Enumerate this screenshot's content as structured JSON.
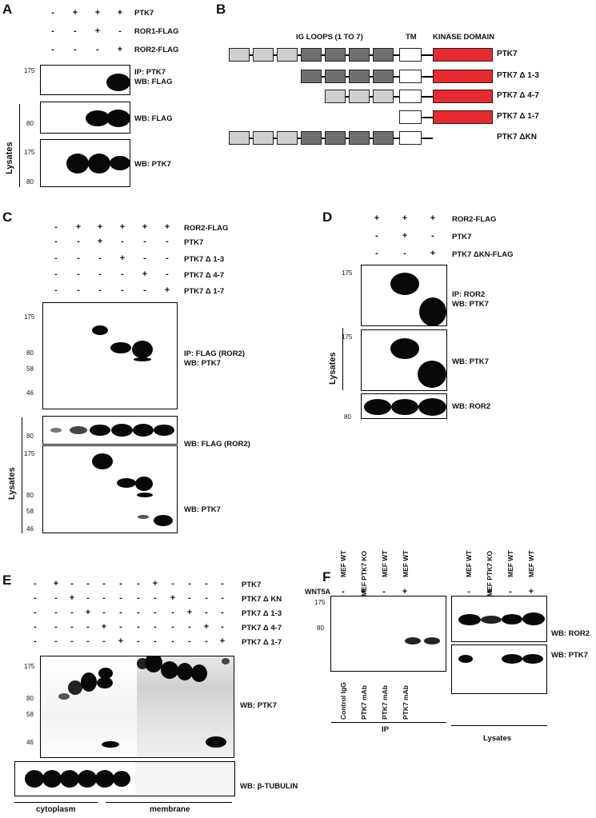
{
  "panels": {
    "A": {
      "letter": "A",
      "conditions": [
        {
          "label": "PTK7",
          "signs": [
            "-",
            "+",
            "+",
            "+"
          ]
        },
        {
          "label": "ROR1-FLAG",
          "signs": [
            "-",
            "-",
            "+",
            "-"
          ]
        },
        {
          "label": "ROR2-FLAG",
          "signs": [
            "-",
            "-",
            "-",
            "+"
          ]
        }
      ],
      "blots": [
        {
          "label1": "IP: PTK7",
          "label2": "WB: FLAG",
          "markers": [
            "175"
          ]
        },
        {
          "label1": "WB: FLAG",
          "markers": [
            "80"
          ]
        },
        {
          "label1": "WB: PTK7",
          "markers": [
            "175",
            "80"
          ]
        }
      ],
      "lysates": "Lysates"
    },
    "B": {
      "letter": "B",
      "header_ig": "IG LOOPS (1 TO 7)",
      "header_tm": "TM",
      "header_kinase": "KINASE DOMAIN",
      "constructs": [
        "PTK7",
        "PTK7 Δ 1-3",
        "PTK7 Δ 4-7",
        "PTK7 Δ 1-7",
        "PTK7 ΔKN"
      ]
    },
    "C": {
      "letter": "C",
      "conditions": [
        {
          "label": "ROR2-FLAG",
          "signs": [
            "-",
            "+",
            "+",
            "+",
            "+",
            "+"
          ]
        },
        {
          "label": "PTK7",
          "signs": [
            "-",
            "-",
            "+",
            "-",
            "-",
            "-"
          ]
        },
        {
          "label": "PTK7 Δ 1-3",
          "signs": [
            "-",
            "-",
            "-",
            "+",
            "-",
            "-"
          ]
        },
        {
          "label": "PTK7 Δ 4-7",
          "signs": [
            "-",
            "-",
            "-",
            "-",
            "+",
            "-"
          ]
        },
        {
          "label": "PTK7 Δ 1-7",
          "signs": [
            "-",
            "-",
            "-",
            "-",
            "-",
            "+"
          ]
        }
      ],
      "blots": [
        {
          "label1": "IP: FLAG (ROR2)",
          "label2": "WB: PTK7",
          "markers": [
            "175",
            "80",
            "58",
            "46"
          ]
        },
        {
          "label1": "WB: FLAG (ROR2)",
          "markers": [
            "80"
          ]
        },
        {
          "label1": "WB: PTK7",
          "markers": [
            "175",
            "80",
            "58",
            "46"
          ]
        }
      ],
      "lysates": "Lysates"
    },
    "D": {
      "letter": "D",
      "conditions": [
        {
          "label": "ROR2-FLAG",
          "signs": [
            "+",
            "+",
            "+"
          ]
        },
        {
          "label": "PTK7",
          "signs": [
            "-",
            "+",
            "-"
          ]
        },
        {
          "label": "PTK7 ΔKN-FLAG",
          "signs": [
            "-",
            "-",
            "+"
          ]
        }
      ],
      "blots": [
        {
          "label1": "IP: ROR2",
          "label2": "WB: PTK7",
          "markers": [
            "175"
          ]
        },
        {
          "label1": "WB: PTK7",
          "markers": [
            "175"
          ]
        },
        {
          "label1": "WB: ROR2",
          "markers": [
            "80"
          ]
        }
      ],
      "lysates": "Lysates"
    },
    "E": {
      "letter": "E",
      "conditions": [
        {
          "label": "PTK7",
          "signs": [
            "-",
            "+",
            "-",
            "-",
            "-",
            "-",
            "-",
            "+",
            "-",
            "-",
            "-",
            "-"
          ]
        },
        {
          "label": "PTK7 Δ KN",
          "signs": [
            "-",
            "-",
            "+",
            "-",
            "-",
            "-",
            "-",
            "-",
            "+",
            "-",
            "-",
            "-"
          ]
        },
        {
          "label": "PTK7 Δ 1-3",
          "signs": [
            "-",
            "-",
            "-",
            "+",
            "-",
            "-",
            "-",
            "-",
            "-",
            "+",
            "-",
            "-"
          ]
        },
        {
          "label": "PTK7 Δ 4-7",
          "signs": [
            "-",
            "-",
            "-",
            "-",
            "+",
            "-",
            "-",
            "-",
            "-",
            "-",
            "+",
            "-"
          ]
        },
        {
          "label": "PTK7 Δ 1-7",
          "signs": [
            "-",
            "-",
            "-",
            "-",
            "-",
            "+",
            "-",
            "-",
            "-",
            "-",
            "-",
            "+"
          ]
        }
      ],
      "blots": [
        {
          "label1": "WB: PTK7",
          "markers": [
            "175",
            "80",
            "58",
            "46"
          ]
        },
        {
          "label1": "WB: β-TUBULIN"
        }
      ],
      "fractions": [
        "cytoplasm",
        "membrane"
      ]
    },
    "F": {
      "letter": "F",
      "cells": [
        "MEF WT",
        "MEF PTK7 KO",
        "MEF WT",
        "MEF WT"
      ],
      "wnt_label": "WNT5A",
      "wnt_signs": [
        "-",
        "+",
        "-",
        "+"
      ],
      "ip_antibodies": [
        "Control IgG",
        "PTK7 mAb",
        "PTK7 mAb",
        "PTK7 mAb"
      ],
      "ip_label": "IP",
      "lysates_label": "Lysates",
      "markers": [
        "175",
        "80"
      ],
      "wb_ror2": "WB: ROR2",
      "wb_ptk7": "WB: PTK7"
    }
  }
}
